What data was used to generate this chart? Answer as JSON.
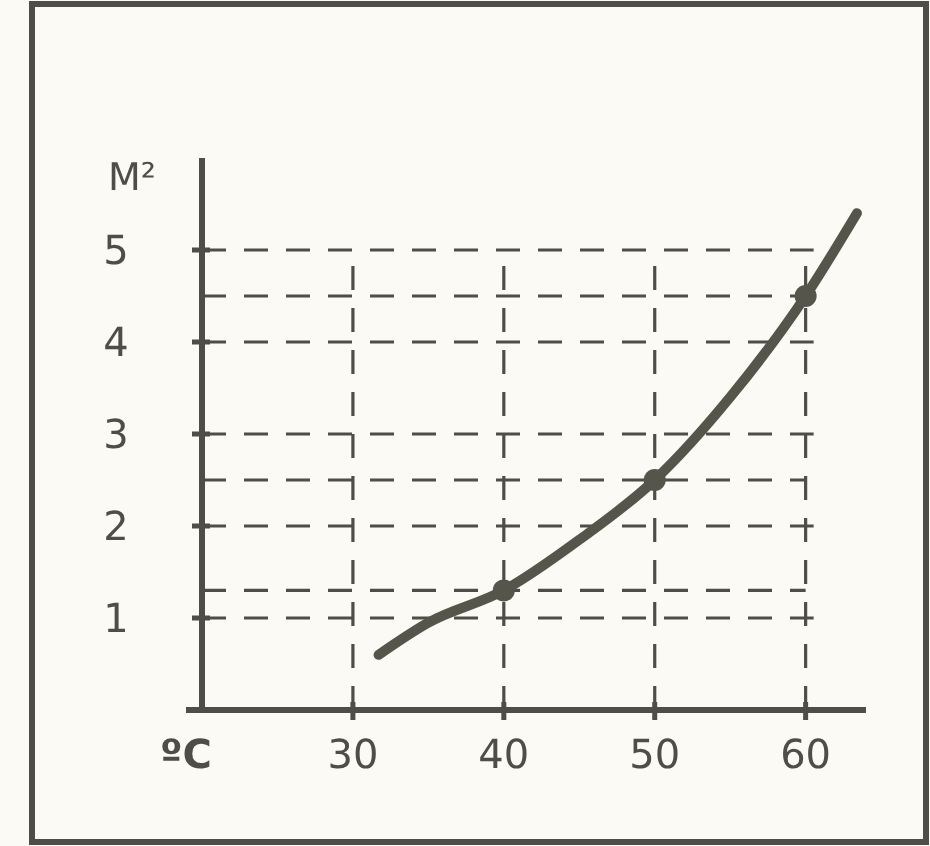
{
  "chart_data": {
    "type": "line",
    "xlabel": "ºC",
    "ylabel": "M²",
    "xlim": [
      20,
      64
    ],
    "ylim": [
      0,
      6
    ],
    "xticks": [
      30,
      40,
      50,
      60
    ],
    "yticks": [
      1,
      2,
      3,
      4,
      5
    ],
    "grid": true,
    "series": [
      {
        "color": "#55554b",
        "marker": "none",
        "x": [
          31.7,
          35,
          40,
          45,
          50,
          55,
          60,
          63.4
        ],
        "values": [
          0.6,
          0.95,
          1.3,
          1.85,
          2.5,
          3.4,
          4.5,
          5.4
        ]
      },
      {
        "type": "scatter",
        "color": "#55554b",
        "marker": "circle",
        "x": [
          40,
          50,
          60
        ],
        "values": [
          1.3,
          2.5,
          4.5
        ]
      }
    ],
    "ref_lines": [
      {
        "axis": "y",
        "value": 1.3,
        "line_style": "dashed"
      },
      {
        "axis": "y",
        "value": 2.5,
        "line_style": "dashed"
      },
      {
        "axis": "y",
        "value": 4.5,
        "line_style": "dashed"
      }
    ]
  }
}
